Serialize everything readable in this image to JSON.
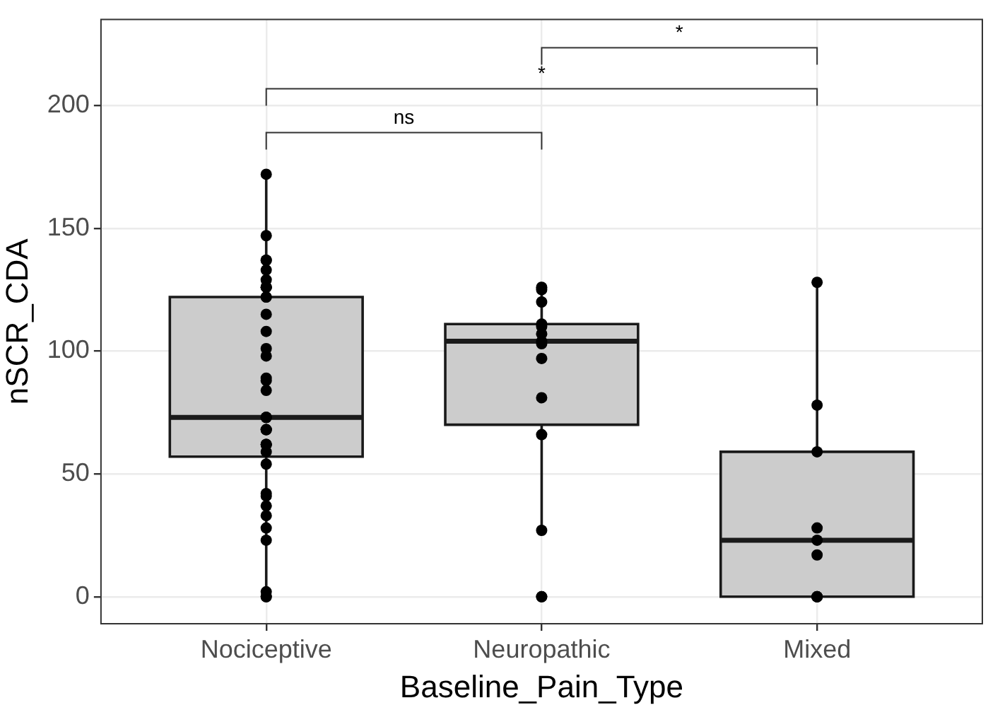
{
  "chart_data": {
    "type": "box",
    "categories": [
      "Nociceptive",
      "Neuropathic",
      "Mixed"
    ],
    "xlabel": "Baseline_Pain_Type",
    "ylabel": "nSCR_CDA",
    "ylim": [
      -11,
      235
    ],
    "yticks": [
      0,
      50,
      100,
      150,
      200
    ],
    "grid": true,
    "legend": false,
    "marker": "circle",
    "annotations": [
      "ns",
      "*",
      "*"
    ],
    "series": [
      {
        "type": "box",
        "color": "#cccccc",
        "boxes": [
          {
            "low": 0,
            "q1": 57,
            "median": 73,
            "q3": 122,
            "high": 172
          },
          {
            "low": 27,
            "q1": 70,
            "median": 104,
            "q3": 111,
            "high": 125
          },
          {
            "low": 0,
            "q1": 0,
            "median": 23,
            "q3": 59,
            "high": 128
          }
        ]
      },
      {
        "type": "scatter",
        "color": "#000000",
        "x": [
          "Nociceptive",
          "Nociceptive",
          "Nociceptive",
          "Nociceptive",
          "Nociceptive",
          "Nociceptive",
          "Nociceptive",
          "Nociceptive",
          "Nociceptive",
          "Nociceptive",
          "Nociceptive",
          "Nociceptive",
          "Nociceptive",
          "Nociceptive",
          "Nociceptive",
          "Nociceptive",
          "Nociceptive",
          "Nociceptive",
          "Nociceptive",
          "Nociceptive",
          "Nociceptive",
          "Nociceptive",
          "Nociceptive",
          "Nociceptive",
          "Nociceptive",
          "Nociceptive",
          "Nociceptive",
          "Nociceptive",
          "Nociceptive",
          "Nociceptive",
          "Nociceptive",
          "Nociceptive",
          "Nociceptive",
          "Nociceptive",
          "Nociceptive",
          "Nociceptive",
          "Nociceptive",
          "Nociceptive",
          "Neuropathic",
          "Neuropathic",
          "Neuropathic",
          "Neuropathic",
          "Neuropathic",
          "Neuropathic",
          "Neuropathic",
          "Neuropathic",
          "Neuropathic",
          "Neuropathic",
          "Neuropathic",
          "Neuropathic",
          "Neuropathic",
          "Neuropathic",
          "Mixed",
          "Mixed",
          "Mixed",
          "Mixed",
          "Mixed",
          "Mixed",
          "Mixed",
          "Mixed",
          "Mixed"
        ],
        "values": [
          172,
          147,
          137,
          137,
          133,
          129,
          126,
          126,
          126,
          122,
          122,
          115,
          108,
          101,
          98,
          89,
          88,
          84,
          73,
          73,
          73,
          68,
          68,
          68,
          62,
          62,
          62,
          59,
          54,
          41,
          42,
          37,
          33,
          28,
          23,
          2,
          0,
          0,
          125,
          126,
          120,
          110,
          111,
          107,
          103,
          104,
          97,
          81,
          66,
          27,
          0,
          0,
          128,
          78,
          59,
          28,
          23,
          17,
          0,
          0,
          0
        ]
      }
    ]
  }
}
